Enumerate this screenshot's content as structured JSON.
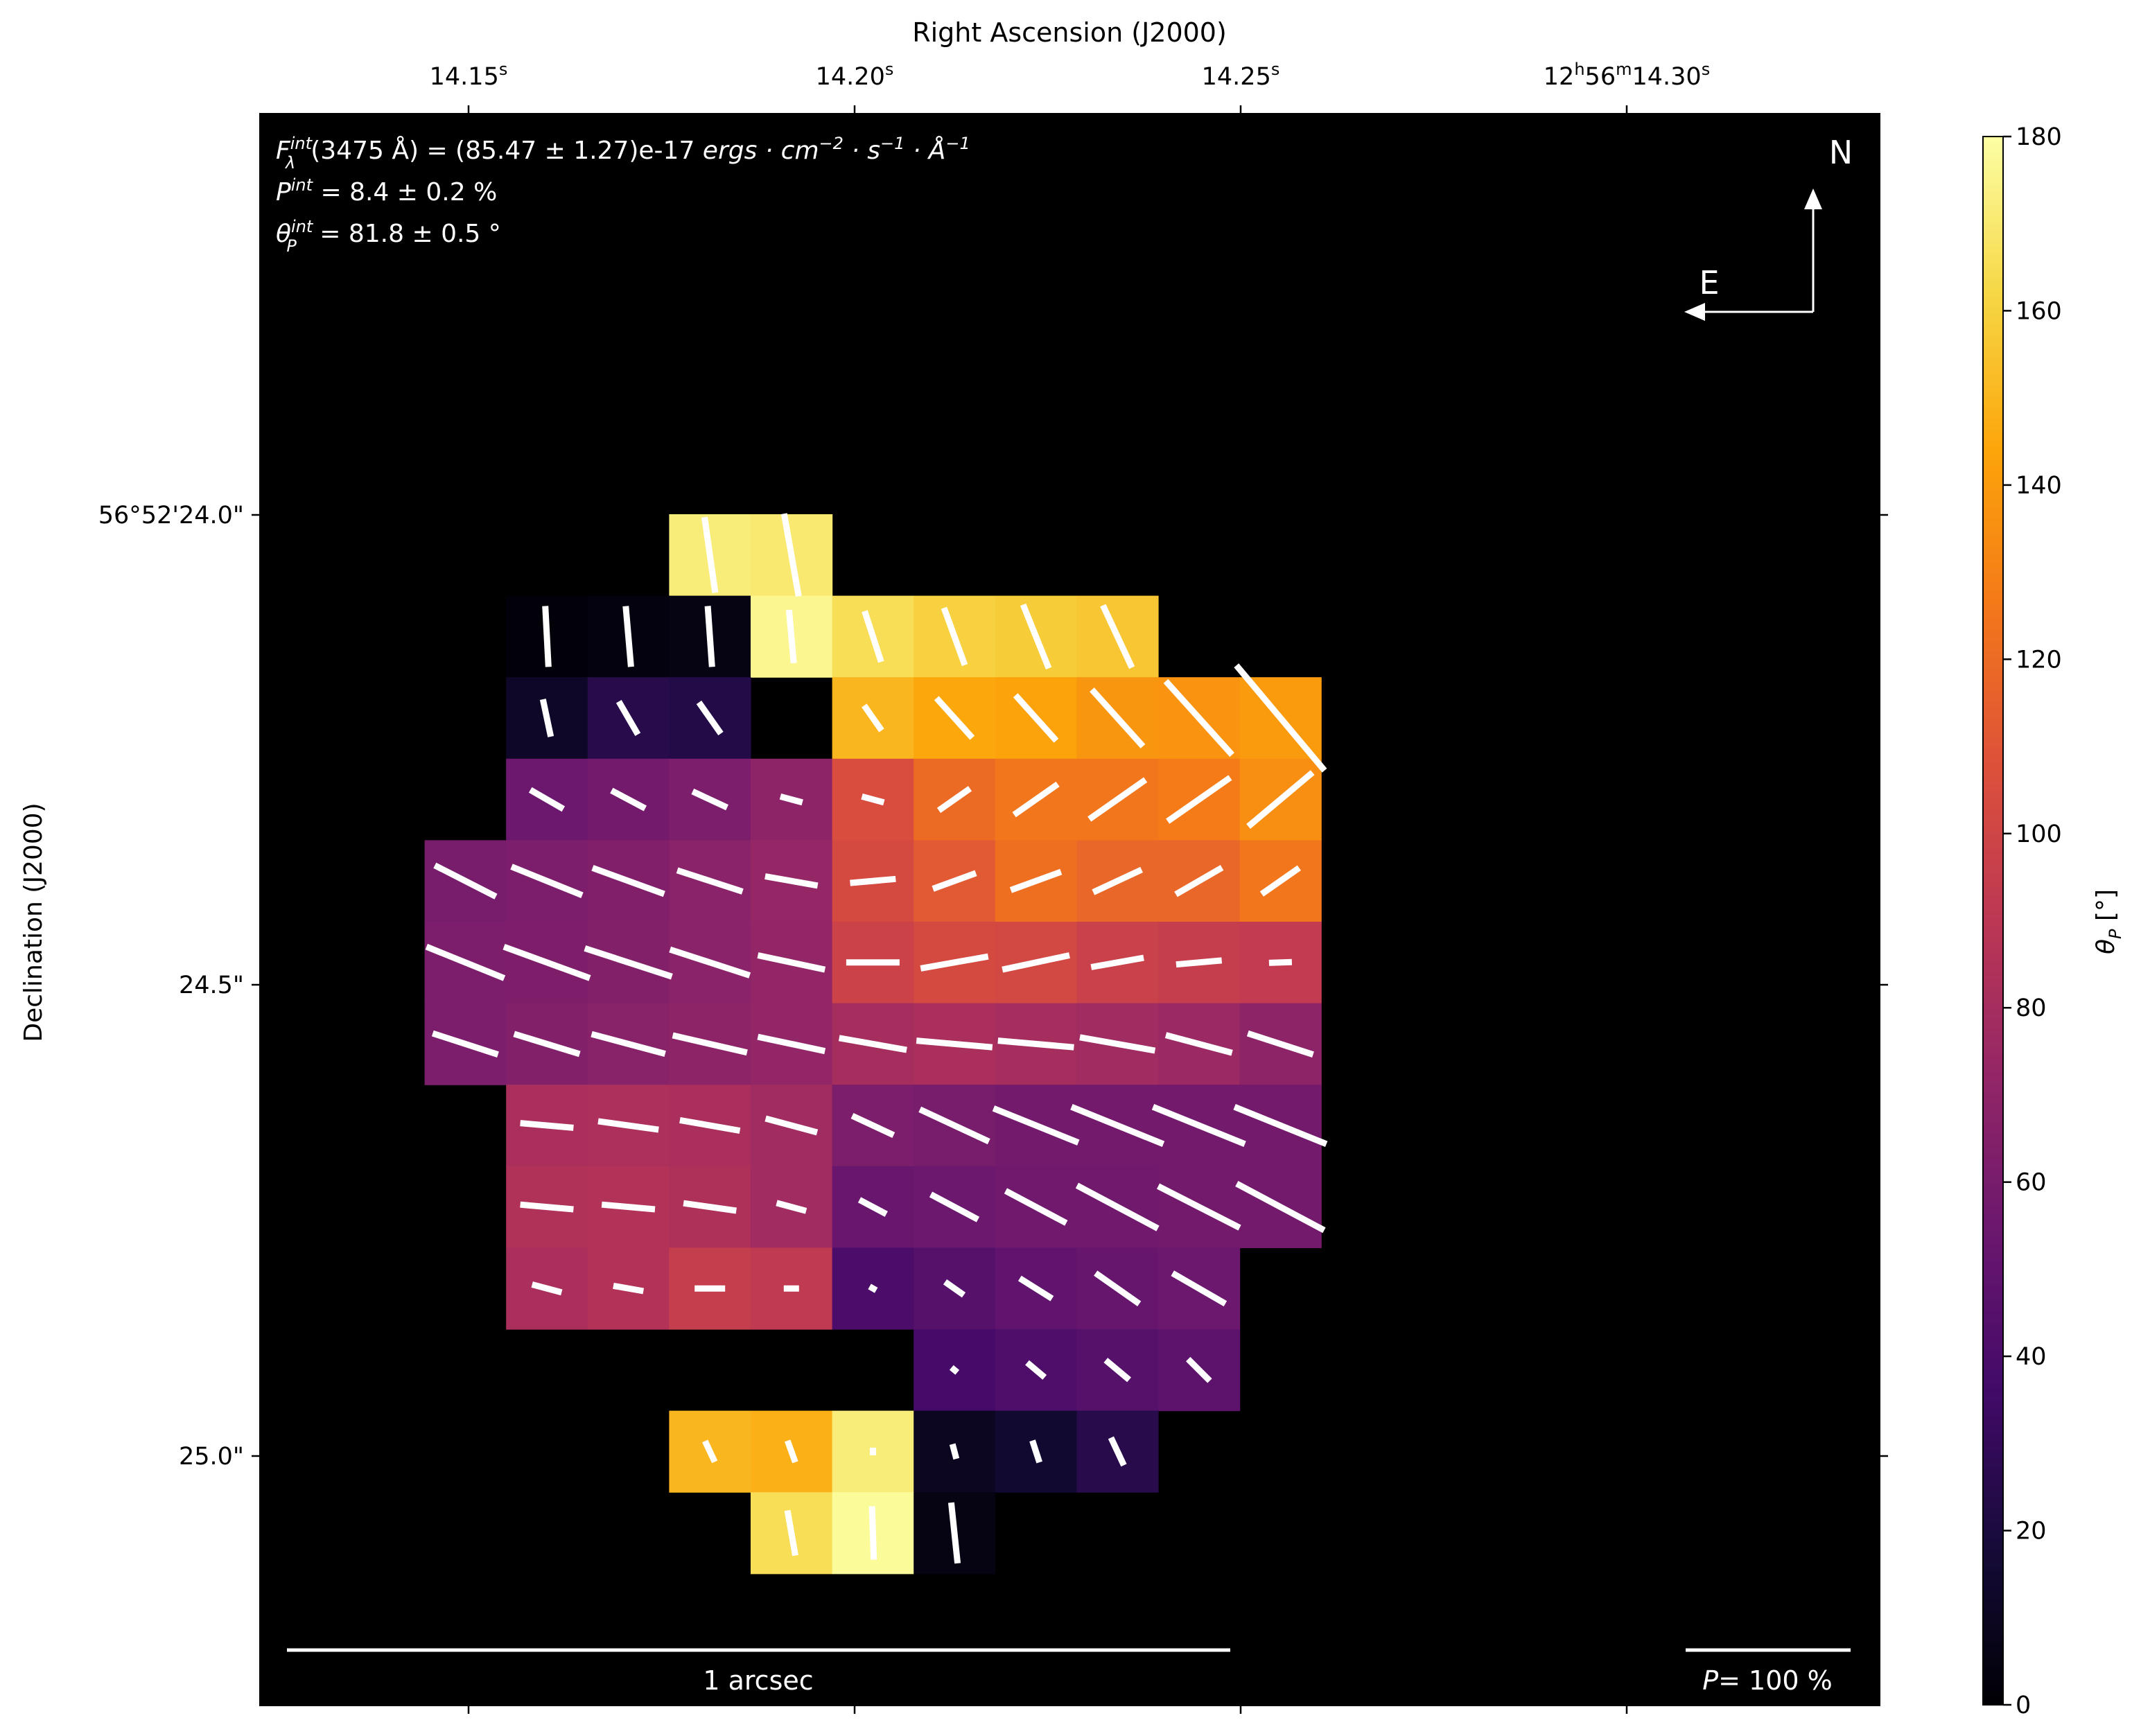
{
  "chart_data": {
    "type": "heatmap",
    "title": "",
    "top_xlabel": "Right Ascension (J2000)",
    "ylabel": "Declination (J2000)",
    "x_ticks": [
      {
        "label_main": "14.15",
        "label_sup": "s"
      },
      {
        "label_main": "14.20",
        "label_sup": "s"
      },
      {
        "label_main": "14.25",
        "label_sup": "s"
      },
      {
        "label_main": "12",
        "label_sup": "h",
        "label_main2": "56",
        "label_sup2": "m",
        "label_main3": "14.30",
        "label_sup3": "s"
      }
    ],
    "y_ticks": [
      "56°52'24.0\"",
      "24.5\"",
      "25.0\""
    ],
    "annotations": {
      "flux_prefix": "F",
      "flux_sup": "int",
      "flux_sub": "λ",
      "flux_rest": "(3475 Å) = (85.47 ± 1.27)e-17 ",
      "flux_units": "ergs · cm",
      "flux_units_sup1": "−2",
      "flux_units_mid": " · s",
      "flux_units_sup2": "−1",
      "flux_units_mid2": " · Å",
      "flux_units_sup3": "−1",
      "p_prefix": "P",
      "p_sup": "int",
      "p_rest": " = 8.4 ± 0.2 %",
      "theta_prefix": "θ",
      "theta_sup": "int",
      "theta_sub": "P",
      "theta_rest": " = 81.8 ± 0.5 °"
    },
    "compass": {
      "north": "N",
      "east": "E"
    },
    "scalebar": {
      "label": "1 arcsec"
    },
    "vector_scale": {
      "label_prefix": "P",
      "label_rest": "= 100 %"
    },
    "colorbar": {
      "label_main": "θ",
      "label_sub": "P",
      "label_unit": " [°]",
      "min": 0,
      "max": 180,
      "ticks": [
        "0",
        "20",
        "40",
        "60",
        "80",
        "100",
        "120",
        "140",
        "160",
        "180"
      ],
      "colormap": "inferno"
    },
    "grid_origin_col": 0,
    "cells": [
      [
        4,
        0,
        172,
        8,
        0.1
      ],
      [
        5,
        0,
        170,
        10,
        0.11
      ],
      [
        2,
        1,
        2,
        3,
        0.08
      ],
      [
        3,
        1,
        4,
        5,
        0.08
      ],
      [
        4,
        1,
        5,
        4,
        0.08
      ],
      [
        5,
        1,
        176,
        5,
        0.07
      ],
      [
        6,
        1,
        165,
        18,
        0.07
      ],
      [
        7,
        1,
        160,
        20,
        0.08
      ],
      [
        8,
        1,
        158,
        22,
        0.09
      ],
      [
        9,
        1,
        156,
        25,
        0.09
      ],
      [
        2,
        2,
        12,
        12,
        0.05
      ],
      [
        3,
        2,
        25,
        30,
        0.05
      ],
      [
        4,
        2,
        23,
        35,
        0.05
      ],
      [
        6,
        2,
        150,
        35,
        0.04
      ],
      [
        7,
        2,
        145,
        42,
        0.07
      ],
      [
        8,
        2,
        143,
        42,
        0.08
      ],
      [
        9,
        2,
        138,
        42,
        0.1
      ],
      [
        10,
        2,
        137,
        42,
        0.13
      ],
      [
        11,
        2,
        140,
        40,
        0.18
      ],
      [
        2,
        3,
        55,
        60,
        0.05
      ],
      [
        3,
        3,
        58,
        62,
        0.05
      ],
      [
        4,
        3,
        62,
        65,
        0.05
      ],
      [
        5,
        3,
        70,
        75,
        0.03
      ],
      [
        6,
        3,
        105,
        75,
        0.03
      ],
      [
        7,
        3,
        120,
        125,
        0.05
      ],
      [
        8,
        3,
        125,
        125,
        0.07
      ],
      [
        9,
        3,
        125,
        125,
        0.09
      ],
      [
        10,
        3,
        127,
        125,
        0.1
      ],
      [
        11,
        3,
        135,
        130,
        0.11
      ],
      [
        1,
        4,
        60,
        63,
        0.09
      ],
      [
        2,
        4,
        62,
        68,
        0.1
      ],
      [
        3,
        4,
        64,
        70,
        0.1
      ],
      [
        4,
        4,
        68,
        72,
        0.09
      ],
      [
        5,
        4,
        73,
        80,
        0.07
      ],
      [
        6,
        4,
        103,
        95,
        0.06
      ],
      [
        7,
        4,
        112,
        110,
        0.06
      ],
      [
        8,
        4,
        122,
        110,
        0.07
      ],
      [
        9,
        4,
        118,
        115,
        0.07
      ],
      [
        10,
        4,
        118,
        120,
        0.07
      ],
      [
        11,
        4,
        125,
        125,
        0.06
      ],
      [
        1,
        5,
        62,
        68,
        0.11
      ],
      [
        2,
        5,
        63,
        70,
        0.12
      ],
      [
        3,
        5,
        65,
        72,
        0.12
      ],
      [
        4,
        5,
        68,
        72,
        0.11
      ],
      [
        5,
        5,
        72,
        78,
        0.09
      ],
      [
        6,
        5,
        98,
        90,
        0.07
      ],
      [
        7,
        5,
        103,
        100,
        0.09
      ],
      [
        8,
        5,
        102,
        102,
        0.09
      ],
      [
        9,
        5,
        97,
        100,
        0.07
      ],
      [
        10,
        5,
        95,
        95,
        0.06
      ],
      [
        11,
        5,
        93,
        92,
        0.03
      ],
      [
        1,
        6,
        62,
        72,
        0.09
      ],
      [
        2,
        6,
        65,
        73,
        0.09
      ],
      [
        3,
        6,
        67,
        75,
        0.1
      ],
      [
        4,
        6,
        70,
        77,
        0.1
      ],
      [
        5,
        6,
        72,
        78,
        0.09
      ],
      [
        6,
        6,
        80,
        80,
        0.09
      ],
      [
        7,
        6,
        82,
        85,
        0.1
      ],
      [
        8,
        6,
        80,
        85,
        0.1
      ],
      [
        9,
        6,
        78,
        80,
        0.1
      ],
      [
        10,
        6,
        75,
        75,
        0.09
      ],
      [
        11,
        6,
        70,
        72,
        0.09
      ],
      [
        2,
        7,
        82,
        85,
        0.07
      ],
      [
        3,
        7,
        83,
        82,
        0.08
      ],
      [
        4,
        7,
        82,
        80,
        0.08
      ],
      [
        5,
        7,
        78,
        75,
        0.07
      ],
      [
        6,
        7,
        62,
        65,
        0.06
      ],
      [
        7,
        7,
        60,
        65,
        0.1
      ],
      [
        8,
        7,
        58,
        68,
        0.12
      ],
      [
        9,
        7,
        58,
        68,
        0.13
      ],
      [
        10,
        7,
        58,
        68,
        0.13
      ],
      [
        11,
        7,
        58,
        68,
        0.13
      ],
      [
        2,
        8,
        85,
        85,
        0.07
      ],
      [
        3,
        8,
        86,
        85,
        0.07
      ],
      [
        4,
        8,
        84,
        82,
        0.07
      ],
      [
        5,
        8,
        78,
        75,
        0.04
      ],
      [
        6,
        8,
        53,
        62,
        0.04
      ],
      [
        7,
        8,
        55,
        62,
        0.07
      ],
      [
        8,
        8,
        57,
        62,
        0.09
      ],
      [
        9,
        8,
        57,
        62,
        0.12
      ],
      [
        10,
        8,
        58,
        63,
        0.12
      ],
      [
        11,
        8,
        58,
        62,
        0.13
      ],
      [
        2,
        9,
        82,
        75,
        0.04
      ],
      [
        3,
        9,
        86,
        80,
        0.04
      ],
      [
        4,
        9,
        95,
        90,
        0.04
      ],
      [
        5,
        9,
        92,
        90,
        0.02
      ],
      [
        6,
        9,
        40,
        60,
        0.01
      ],
      [
        7,
        9,
        45,
        55,
        0.03
      ],
      [
        8,
        9,
        50,
        58,
        0.05
      ],
      [
        9,
        9,
        52,
        55,
        0.07
      ],
      [
        10,
        9,
        55,
        60,
        0.08
      ],
      [
        7,
        10,
        38,
        50,
        0.01
      ],
      [
        8,
        10,
        42,
        50,
        0.03
      ],
      [
        9,
        10,
        45,
        50,
        0.04
      ],
      [
        10,
        10,
        48,
        45,
        0.04
      ],
      [
        4,
        11,
        150,
        25,
        0.03
      ],
      [
        5,
        11,
        148,
        20,
        0.03
      ],
      [
        6,
        11,
        172,
        0,
        0.01
      ],
      [
        7,
        11,
        10,
        15,
        0.02
      ],
      [
        8,
        11,
        15,
        18,
        0.03
      ],
      [
        9,
        11,
        25,
        25,
        0.04
      ],
      [
        5,
        12,
        165,
        10,
        0.06
      ],
      [
        6,
        12,
        178,
        2,
        0.07
      ],
      [
        7,
        12,
        5,
        6,
        0.08
      ]
    ]
  }
}
